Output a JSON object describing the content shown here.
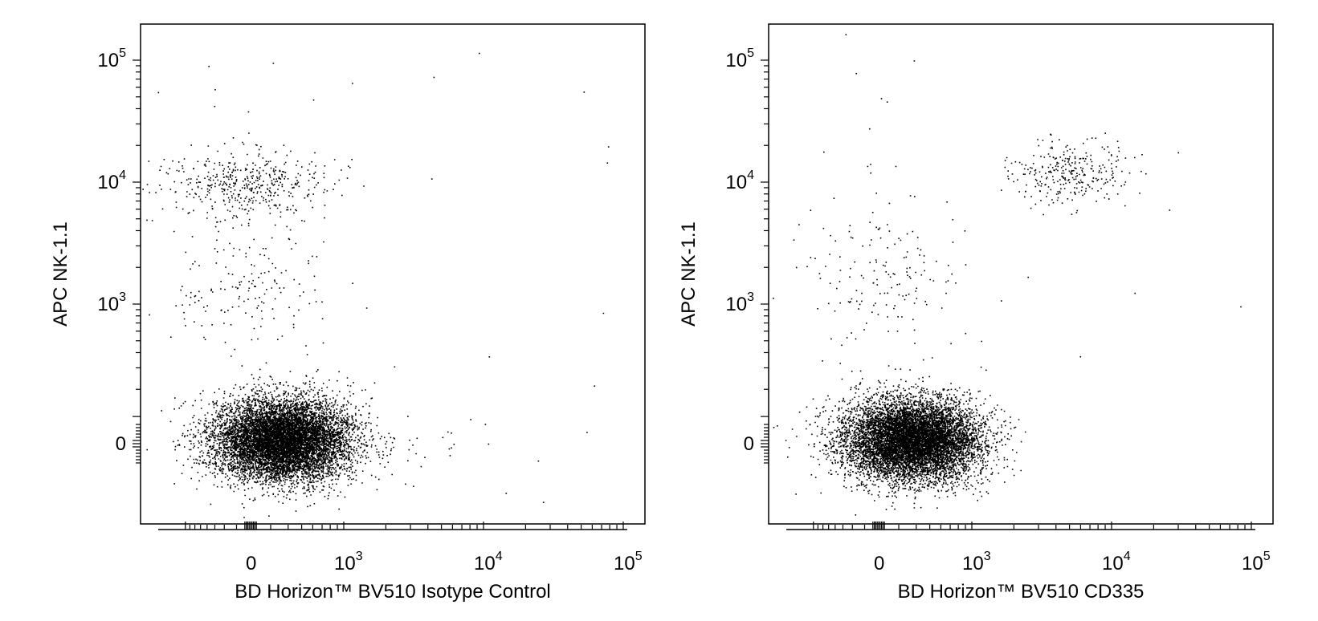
{
  "chart_data": [
    {
      "type": "scatter",
      "title": "",
      "xlabel": "BD Horizon™ BV510 Isotype Control",
      "ylabel": "APC NK-1.1",
      "x_scale": "biexponential",
      "y_scale": "biexponential",
      "x_ticks": [
        {
          "label": "0",
          "value": 0
        },
        {
          "label": "10",
          "sup": "3",
          "value": 1000
        },
        {
          "label": "10",
          "sup": "4",
          "value": 10000
        },
        {
          "label": "10",
          "sup": "5",
          "value": 100000
        }
      ],
      "y_ticks": [
        {
          "label": "0",
          "value": 0
        },
        {
          "label": "10",
          "sup": "3",
          "value": 1000
        },
        {
          "label": "10",
          "sup": "4",
          "value": 10000
        },
        {
          "label": "10",
          "sup": "5",
          "value": 100000
        }
      ],
      "grid": false,
      "legend": "none",
      "populations": [
        {
          "name": "main",
          "center": [
            120,
            0
          ],
          "spread": "dense",
          "count": 9000
        },
        {
          "name": "nk1.1-positive",
          "center": [
            100,
            10000
          ],
          "count": 450
        },
        {
          "name": "nk1.1-intermediate",
          "center": [
            100,
            1500
          ],
          "count": 180
        },
        {
          "name": "bv510-bright",
          "center": [
            5000,
            0
          ],
          "count": 30
        },
        {
          "name": "outliers",
          "count": 40
        }
      ]
    },
    {
      "type": "scatter",
      "title": "",
      "xlabel": "BD Horizon™ BV510 CD335",
      "ylabel": "APC NK-1.1",
      "x_scale": "biexponential",
      "y_scale": "biexponential",
      "x_ticks": [
        {
          "label": "0",
          "value": 0
        },
        {
          "label": "10",
          "sup": "3",
          "value": 1000
        },
        {
          "label": "10",
          "sup": "4",
          "value": 10000
        },
        {
          "label": "10",
          "sup": "5",
          "value": 100000
        }
      ],
      "y_ticks": [
        {
          "label": "0",
          "value": 0
        },
        {
          "label": "10",
          "sup": "3",
          "value": 1000
        },
        {
          "label": "10",
          "sup": "4",
          "value": 10000
        },
        {
          "label": "10",
          "sup": "5",
          "value": 100000
        }
      ],
      "grid": false,
      "legend": "none",
      "populations": [
        {
          "name": "main",
          "center": [
            100,
            0
          ],
          "spread": "dense",
          "count": 9000
        },
        {
          "name": "cd335-nk1.1-double-positive",
          "center": [
            5000,
            12000
          ],
          "count": 300
        },
        {
          "name": "nk1.1-intermediate",
          "center": [
            60,
            1500
          ],
          "count": 150
        },
        {
          "name": "outliers",
          "count": 40
        }
      ]
    }
  ],
  "colors": {
    "dots": "#000000",
    "axis": "#000000",
    "background": "#ffffff"
  }
}
